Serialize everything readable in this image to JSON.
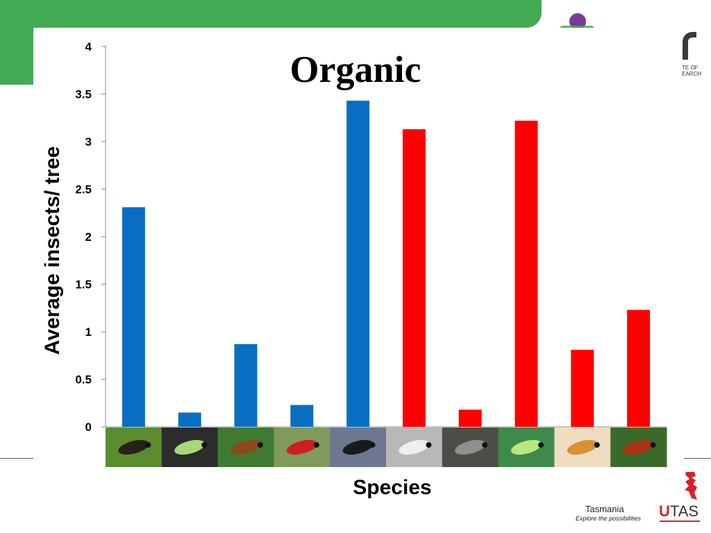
{
  "logos": {
    "institute_line1": "TE OF",
    "institute_line2": "EARCH",
    "tasmania": "Tasmania",
    "tasmania_tagline": "Explore the possibilities",
    "utas_u": "U",
    "utas_rest": "TAS"
  },
  "colors": {
    "green_theme": "#43aa55",
    "blue_series": "#0a6fc2",
    "red_series": "#ff0000"
  },
  "chart_data": {
    "type": "bar",
    "title": "Organic",
    "xlabel": "Species",
    "ylabel": "Average insects/ tree",
    "ylim": [
      0,
      4
    ],
    "yticks": [
      "0",
      "0.5",
      "1",
      "1.5",
      "2",
      "2.5",
      "3",
      "3.5",
      "4"
    ],
    "grid": false,
    "category_images": [
      "earwig-icon",
      "lacewing-icon",
      "hoverfly-icon",
      "ladybird-icon",
      "parasitic-wasp-icon",
      "woolly-aphid-icon",
      "scale-insect-icon",
      "leafhopper-icon",
      "thrips-icon",
      "mite-icon"
    ],
    "values": [
      2.31,
      0.15,
      0.87,
      0.23,
      3.43,
      3.13,
      0.18,
      3.22,
      0.81,
      1.23
    ],
    "bar_colors": [
      "#0a6fc2",
      "#0a6fc2",
      "#0a6fc2",
      "#0a6fc2",
      "#0a6fc2",
      "#ff0000",
      "#ff0000",
      "#ff0000",
      "#ff0000",
      "#ff0000"
    ]
  }
}
